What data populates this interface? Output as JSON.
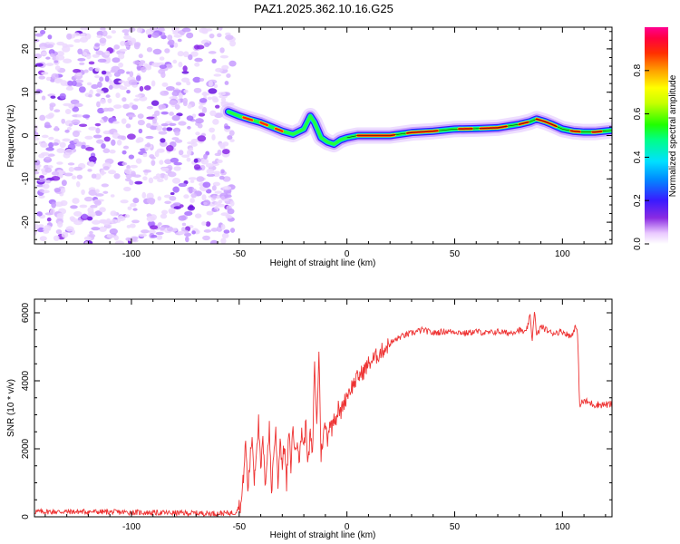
{
  "title": "PAZ1.2025.362.10.16.G25",
  "colors": {
    "snr_line": "#ee3333",
    "track_edge": "#5020ff",
    "noise": "#8b2be8",
    "axis": "#000000"
  },
  "chart_data": [
    {
      "type": "heatmap",
      "xlabel": "Height of straight line (km)",
      "ylabel": "Frequency (Hz)",
      "xlim": [
        -145,
        123
      ],
      "ylim": [
        -25,
        25
      ],
      "xticks": [
        -100,
        -50,
        0,
        50,
        100
      ],
      "yticks": [
        -20,
        -10,
        0,
        10,
        20
      ],
      "xtick_labels": [
        "-100",
        "-50",
        "0",
        "50",
        "100"
      ],
      "ytick_labels": [
        "-20",
        "-10",
        "0",
        "10",
        "20"
      ],
      "noise_region": [
        -145,
        -53
      ],
      "track": {
        "x": [
          -55,
          -50,
          -45,
          -40,
          -35,
          -30,
          -25,
          -20,
          -17,
          -15,
          -12,
          -9,
          -6,
          -3,
          0,
          5,
          10,
          20,
          30,
          40,
          50,
          60,
          70,
          80,
          85,
          88,
          92,
          95,
          100,
          105,
          110,
          115,
          123
        ],
        "freq": [
          5.5,
          4.5,
          3.7,
          3,
          2,
          1,
          0.3,
          1.5,
          4.5,
          3,
          -0.5,
          -1.5,
          -2.0,
          -1.0,
          -0.5,
          0,
          0,
          0,
          0.7,
          1,
          1.5,
          1.6,
          1.8,
          2.6,
          3.2,
          3.8,
          3.2,
          2.6,
          1.5,
          1,
          0.8,
          0.8,
          1.2
        ]
      },
      "colorbar": {
        "label": "Normalized spectral amplitude",
        "ticks": [
          0,
          0.2,
          0.4,
          0.6,
          0.8
        ],
        "tick_labels": [
          "0.0",
          "0.2",
          "0.4",
          "0.6",
          "0.8"
        ],
        "range": [
          0,
          1
        ]
      }
    },
    {
      "type": "line",
      "xlabel": "Height of straight line (km)",
      "ylabel": "SNR (10 * v/v)",
      "xlim": [
        -145,
        123
      ],
      "ylim": [
        0,
        6400
      ],
      "xticks": [
        -100,
        -50,
        0,
        50,
        100
      ],
      "yticks": [
        0,
        2000,
        4000,
        6000
      ],
      "xtick_labels": [
        "-100",
        "-50",
        "0",
        "50",
        "100"
      ],
      "ytick_labels": [
        "0",
        "2000",
        "4000",
        "6000"
      ],
      "series": [
        {
          "name": "SNR",
          "x": [
            -145,
            -120,
            -90,
            -60,
            -52,
            -49,
            -48,
            -47,
            -46,
            -45,
            -44,
            -43,
            -42,
            -41,
            -40,
            -39,
            -38,
            -37,
            -36,
            -35,
            -34,
            -33,
            -32,
            -31,
            -30,
            -29,
            -28,
            -27,
            -26,
            -25,
            -24,
            -23,
            -22,
            -21,
            -20,
            -19,
            -18,
            -17,
            -16,
            -15,
            -14,
            -13,
            -12,
            -11,
            -10,
            -9,
            -8,
            -7,
            -6,
            -5,
            -4,
            -3,
            -2,
            -1,
            0,
            2,
            5,
            8,
            10,
            15,
            20,
            25,
            30,
            35,
            40,
            45,
            50,
            55,
            60,
            65,
            70,
            75,
            80,
            83,
            85,
            86,
            87,
            88,
            90,
            95,
            100,
            104,
            106,
            107,
            108,
            110,
            115,
            123
          ],
          "values": [
            150,
            150,
            120,
            100,
            120,
            400,
            1200,
            2200,
            800,
            1600,
            2400,
            1100,
            2000,
            2800,
            1300,
            2300,
            900,
            1800,
            2600,
            700,
            1900,
            2500,
            1000,
            2300,
            1500,
            2200,
            900,
            2500,
            1500,
            2700,
            1800,
            2400,
            1600,
            2600,
            2000,
            2800,
            1500,
            2500,
            1700,
            4600,
            2600,
            4900,
            1800,
            2400,
            2700,
            2300,
            2800,
            2600,
            3000,
            2900,
            3200,
            3000,
            3300,
            3400,
            3600,
            3800,
            4100,
            4300,
            4500,
            4800,
            5100,
            5300,
            5400,
            5500,
            5400,
            5450,
            5450,
            5400,
            5450,
            5400,
            5450,
            5400,
            5500,
            5400,
            5900,
            5200,
            6100,
            5300,
            5600,
            5400,
            5450,
            5300,
            5600,
            5400,
            3300,
            3400,
            3300,
            3300
          ]
        }
      ]
    }
  ]
}
